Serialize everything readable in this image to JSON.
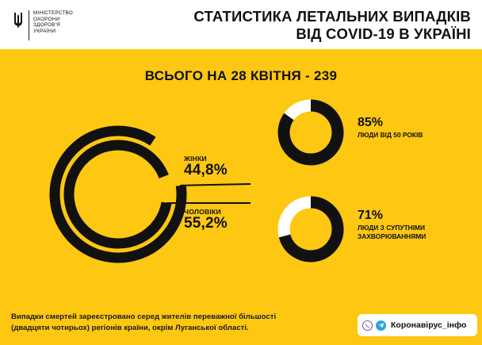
{
  "header": {
    "ministry_lines": [
      "МІНІСТЕРСТВО",
      "ОХОРОНИ",
      "ЗДОРОВ'Я",
      "УКРАЇНИ"
    ],
    "title_line1": "СТАТИСТИКА ЛЕТАЛЬНИХ ВИПАДКІВ",
    "title_line2": "ВІД COVID-19 В УКРАЇНІ"
  },
  "total_label": "ВСЬОГО НА 28 КВІТНЯ - 239",
  "colors": {
    "panel": "#fdc712",
    "ring": "#111111",
    "ring_remainder": "#ffffff",
    "text": "#111111"
  },
  "chart_data": [
    {
      "type": "pie",
      "categories": [
        "ЖІНКИ",
        "ЧОЛОВІКИ"
      ],
      "values": [
        44.8,
        55.2
      ],
      "labels": [
        "44,8%",
        "55,2%"
      ]
    },
    {
      "type": "pie",
      "values": [
        85,
        15
      ],
      "value_label": "85%",
      "description": "ЛЮДИ ВІД 50 РОКІВ"
    },
    {
      "type": "pie",
      "values": [
        71,
        29
      ],
      "value_label": "71%",
      "description_line1": "ЛЮДИ З СУПУТНІМИ",
      "description_line2": "ЗАХВОРЮВАННЯМИ"
    }
  ],
  "footer": {
    "note_line1": "Випадки смертей зареєстровано серед жителів переважної більшості",
    "note_line2": "(двадцяти чотирьох) регіонів країни, окрім Луганської області.",
    "source_label": "Коронавірус_інфо",
    "icons": [
      "viber-icon",
      "telegram-icon"
    ]
  }
}
